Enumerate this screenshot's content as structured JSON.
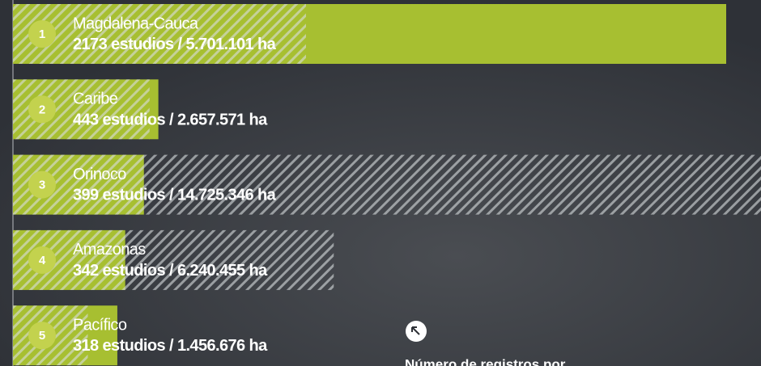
{
  "chart_data": {
    "type": "bar",
    "orientation": "horizontal",
    "categories": [
      "Magdalena-Cauca",
      "Caribe",
      "Orinoco",
      "Amazonas",
      "Pacífico"
    ],
    "ranks": [
      1,
      2,
      3,
      4,
      5
    ],
    "separator": "/",
    "series": [
      {
        "color": "#a7bf31",
        "values": [
          2173,
          443,
          399,
          342,
          318
        ],
        "value_labels": [
          "2173 estudios",
          "443 estudios",
          "399 estudios",
          "342 estudios",
          "318 estudios"
        ]
      },
      {
        "color": "#d9dde0",
        "pattern": "hatch",
        "values": [
          5701101,
          2657571,
          14725346,
          6240455,
          1456676
        ],
        "value_labels": [
          "5.701.101 ha",
          "2.657.571 ha",
          "14.725.346 ha",
          "6.240.455 ha",
          "1.456.676 ha"
        ]
      }
    ],
    "note": "Número de registros por"
  }
}
